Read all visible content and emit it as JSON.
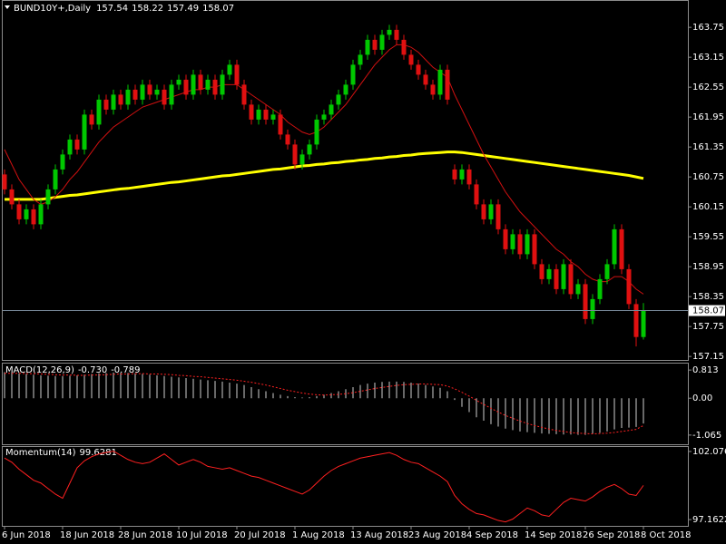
{
  "chart_data": [
    {
      "type": "candlestick",
      "symbol": "BUND10Y+,Daily",
      "categories": [
        "6 Jun 2018",
        null,
        null,
        null,
        null,
        null,
        null,
        null,
        "18 Jun 2018",
        null,
        null,
        null,
        null,
        null,
        null,
        null,
        "28 Jun 2018",
        null,
        null,
        null,
        null,
        null,
        null,
        null,
        "10 Jul 2018",
        null,
        null,
        null,
        null,
        null,
        null,
        null,
        "20 Jul 2018",
        null,
        null,
        null,
        null,
        null,
        null,
        null,
        "1 Aug 2018",
        null,
        null,
        null,
        null,
        null,
        null,
        null,
        "13 Aug 2018",
        null,
        null,
        null,
        null,
        null,
        null,
        null,
        "23 Aug 2018",
        null,
        null,
        null,
        null,
        null,
        null,
        null,
        "4 Sep 2018",
        null,
        null,
        null,
        null,
        null,
        null,
        null,
        "14 Sep 2018",
        null,
        null,
        null,
        null,
        null,
        null,
        null,
        "26 Sep 2018",
        null,
        null,
        null,
        null,
        null,
        null,
        null,
        "8 Oct 2018"
      ],
      "open": [
        160.8,
        160.5,
        160.2,
        159.9,
        160.1,
        159.8,
        160.2,
        160.5,
        160.9,
        161.2,
        161.5,
        161.3,
        162.0,
        161.8,
        162.3,
        162.1,
        162.4,
        162.2,
        162.5,
        162.3,
        162.6,
        162.4,
        162.5,
        162.2,
        162.6,
        162.7,
        162.4,
        162.8,
        162.5,
        162.7,
        162.4,
        162.8,
        163.0,
        162.6,
        162.2,
        161.9,
        162.1,
        161.9,
        162.0,
        161.6,
        161.4,
        161.0,
        161.2,
        161.4,
        161.9,
        162.0,
        162.2,
        162.4,
        162.6,
        163.0,
        163.2,
        163.5,
        163.3,
        163.6,
        163.7,
        163.5,
        163.2,
        163.0,
        162.8,
        162.6,
        162.4,
        162.9,
        160.9,
        160.7,
        160.9,
        160.6,
        160.2,
        159.9,
        160.2,
        159.7,
        159.3,
        159.6,
        159.2,
        159.6,
        159.0,
        158.7,
        158.9,
        158.5,
        159.0,
        158.4,
        158.6,
        157.9,
        158.3,
        158.7,
        159.0,
        159.7,
        158.9,
        158.2,
        157.54
      ],
      "high": [
        160.9,
        160.6,
        160.3,
        160.2,
        160.2,
        160.3,
        160.6,
        161.0,
        161.3,
        161.6,
        161.6,
        162.1,
        162.1,
        162.4,
        162.4,
        162.5,
        162.5,
        162.6,
        162.6,
        162.7,
        162.7,
        162.6,
        162.6,
        162.7,
        162.8,
        162.8,
        162.9,
        162.9,
        162.8,
        162.8,
        162.9,
        163.1,
        163.1,
        162.7,
        162.3,
        162.2,
        162.2,
        162.1,
        162.1,
        161.7,
        161.5,
        161.3,
        161.5,
        162.0,
        162.1,
        162.3,
        162.5,
        162.7,
        163.1,
        163.3,
        163.6,
        163.6,
        163.7,
        163.8,
        163.8,
        163.6,
        163.3,
        163.1,
        162.9,
        162.7,
        163.0,
        163.0,
        161.0,
        161.0,
        161.0,
        160.7,
        160.3,
        160.3,
        160.3,
        159.8,
        159.7,
        159.7,
        159.7,
        159.7,
        159.1,
        159.0,
        159.0,
        159.1,
        159.1,
        158.7,
        158.7,
        158.4,
        158.8,
        159.1,
        159.8,
        159.8,
        159.0,
        158.3,
        158.22
      ],
      "low": [
        160.4,
        160.1,
        159.8,
        159.8,
        159.7,
        159.7,
        160.1,
        160.4,
        160.8,
        161.1,
        161.2,
        161.2,
        161.7,
        161.7,
        162.0,
        162.0,
        162.1,
        162.1,
        162.2,
        162.2,
        162.3,
        162.3,
        162.1,
        162.1,
        162.5,
        162.3,
        162.3,
        162.4,
        162.4,
        162.3,
        162.3,
        162.7,
        162.5,
        162.1,
        161.8,
        161.8,
        161.8,
        161.8,
        161.5,
        161.3,
        160.9,
        160.9,
        161.1,
        161.3,
        161.8,
        161.9,
        162.1,
        162.3,
        162.5,
        162.9,
        163.1,
        163.2,
        163.2,
        163.5,
        163.4,
        163.1,
        162.9,
        162.7,
        162.5,
        162.3,
        162.3,
        162.2,
        160.6,
        160.6,
        160.5,
        160.1,
        159.8,
        159.8,
        159.6,
        159.2,
        159.2,
        159.1,
        159.1,
        158.9,
        158.6,
        158.6,
        158.4,
        158.4,
        158.3,
        158.3,
        157.8,
        157.8,
        158.2,
        158.6,
        158.9,
        158.8,
        158.1,
        157.35,
        157.49
      ],
      "close": [
        160.5,
        160.2,
        159.9,
        160.1,
        159.8,
        160.2,
        160.5,
        160.9,
        161.2,
        161.5,
        161.3,
        162.0,
        161.8,
        162.3,
        162.1,
        162.4,
        162.2,
        162.5,
        162.3,
        162.6,
        162.4,
        162.5,
        162.2,
        162.6,
        162.7,
        162.4,
        162.8,
        162.5,
        162.7,
        162.4,
        162.8,
        163.0,
        162.6,
        162.2,
        161.9,
        162.1,
        161.9,
        162.0,
        161.6,
        161.4,
        161.0,
        161.2,
        161.4,
        161.9,
        162.0,
        162.2,
        162.4,
        162.6,
        163.0,
        163.2,
        163.5,
        163.3,
        163.6,
        163.7,
        163.5,
        163.2,
        163.0,
        162.8,
        162.6,
        162.4,
        162.9,
        162.3,
        160.7,
        160.9,
        160.6,
        160.2,
        159.9,
        160.2,
        159.7,
        159.3,
        159.6,
        159.2,
        159.6,
        159.0,
        158.7,
        158.9,
        158.5,
        159.0,
        158.4,
        158.6,
        157.9,
        158.3,
        158.7,
        159.0,
        159.7,
        158.9,
        158.2,
        157.54,
        158.07
      ],
      "up_color": "#00c800",
      "down_color": "#e01010",
      "ylim": [
        157.08,
        164.28
      ],
      "yticks": [
        163.75,
        163.15,
        162.55,
        161.95,
        161.35,
        160.75,
        160.15,
        159.55,
        158.95,
        158.35,
        157.75,
        157.15
      ],
      "lines": [
        {
          "color": "#ffff00",
          "width": 3,
          "values": [
            160.3,
            160.3,
            160.3,
            160.3,
            160.3,
            160.3,
            160.32,
            160.34,
            160.36,
            160.38,
            160.39,
            160.41,
            160.43,
            160.45,
            160.47,
            160.49,
            160.51,
            160.52,
            160.54,
            160.56,
            160.58,
            160.6,
            160.62,
            160.64,
            160.65,
            160.67,
            160.69,
            160.71,
            160.73,
            160.75,
            160.77,
            160.78,
            160.8,
            160.82,
            160.84,
            160.86,
            160.88,
            160.9,
            160.91,
            160.93,
            160.95,
            160.97,
            160.98,
            161.0,
            161.01,
            161.03,
            161.04,
            161.06,
            161.07,
            161.09,
            161.1,
            161.12,
            161.13,
            161.15,
            161.16,
            161.18,
            161.19,
            161.21,
            161.22,
            161.23,
            161.24,
            161.25,
            161.25,
            161.24,
            161.22,
            161.2,
            161.18,
            161.16,
            161.14,
            161.12,
            161.1,
            161.08,
            161.06,
            161.04,
            161.02,
            161.0,
            160.98,
            160.96,
            160.94,
            160.92,
            160.9,
            160.88,
            160.86,
            160.84,
            160.82,
            160.8,
            160.78,
            160.75,
            160.72
          ]
        },
        {
          "color": "#d01010",
          "width": 1,
          "values": [
            161.3,
            161.0,
            160.7,
            160.5,
            160.3,
            160.2,
            160.25,
            160.35,
            160.5,
            160.7,
            160.85,
            161.05,
            161.25,
            161.45,
            161.6,
            161.75,
            161.85,
            161.95,
            162.05,
            162.15,
            162.2,
            162.25,
            162.3,
            162.35,
            162.4,
            162.45,
            162.5,
            162.5,
            162.55,
            162.55,
            162.6,
            162.6,
            162.6,
            162.5,
            162.4,
            162.3,
            162.2,
            162.1,
            162.0,
            161.85,
            161.75,
            161.65,
            161.6,
            161.65,
            161.75,
            161.9,
            162.05,
            162.2,
            162.4,
            162.6,
            162.8,
            163.0,
            163.15,
            163.3,
            163.4,
            163.4,
            163.35,
            163.25,
            163.1,
            162.95,
            162.85,
            162.75,
            162.4,
            162.1,
            161.8,
            161.5,
            161.2,
            160.95,
            160.7,
            160.45,
            160.25,
            160.05,
            159.9,
            159.75,
            159.6,
            159.45,
            159.3,
            159.2,
            159.05,
            158.95,
            158.8,
            158.7,
            158.65,
            158.65,
            158.75,
            158.75,
            158.65,
            158.5,
            158.4
          ]
        }
      ]
    },
    {
      "type": "macd",
      "name": "MACD(12,26,9)",
      "last_labels": [
        "-0.730",
        "-0.789"
      ],
      "histogram": [
        0.75,
        0.74,
        0.72,
        0.7,
        0.68,
        0.66,
        0.65,
        0.64,
        0.64,
        0.65,
        0.66,
        0.68,
        0.7,
        0.72,
        0.73,
        0.74,
        0.74,
        0.73,
        0.72,
        0.7,
        0.68,
        0.66,
        0.64,
        0.62,
        0.6,
        0.58,
        0.56,
        0.54,
        0.52,
        0.5,
        0.48,
        0.45,
        0.42,
        0.38,
        0.32,
        0.26,
        0.2,
        0.15,
        0.1,
        0.06,
        0.03,
        0.02,
        0.03,
        0.06,
        0.1,
        0.15,
        0.2,
        0.26,
        0.32,
        0.38,
        0.42,
        0.45,
        0.47,
        0.48,
        0.48,
        0.47,
        0.45,
        0.42,
        0.38,
        0.34,
        0.3,
        0.2,
        -0.05,
        -0.25,
        -0.4,
        -0.55,
        -0.65,
        -0.75,
        -0.82,
        -0.88,
        -0.92,
        -0.96,
        -0.98,
        -1.0,
        -1.02,
        -1.03,
        -1.04,
        -1.05,
        -1.05,
        -1.06,
        -1.06,
        -1.04,
        -1.0,
        -0.96,
        -0.9,
        -0.86,
        -0.85,
        -0.83,
        -0.73
      ],
      "signal": [
        0.72,
        0.72,
        0.72,
        0.71,
        0.71,
        0.7,
        0.69,
        0.68,
        0.67,
        0.67,
        0.66,
        0.66,
        0.67,
        0.67,
        0.68,
        0.69,
        0.7,
        0.7,
        0.71,
        0.71,
        0.7,
        0.7,
        0.69,
        0.68,
        0.66,
        0.65,
        0.63,
        0.62,
        0.6,
        0.58,
        0.56,
        0.54,
        0.52,
        0.49,
        0.46,
        0.42,
        0.38,
        0.33,
        0.28,
        0.23,
        0.19,
        0.15,
        0.12,
        0.1,
        0.09,
        0.1,
        0.11,
        0.13,
        0.16,
        0.2,
        0.24,
        0.28,
        0.31,
        0.34,
        0.37,
        0.39,
        0.4,
        0.41,
        0.41,
        0.4,
        0.39,
        0.35,
        0.27,
        0.17,
        0.06,
        -0.06,
        -0.18,
        -0.29,
        -0.4,
        -0.5,
        -0.58,
        -0.66,
        -0.73,
        -0.79,
        -0.84,
        -0.89,
        -0.93,
        -0.96,
        -0.99,
        -1.01,
        -1.02,
        -1.03,
        -1.02,
        -1.01,
        -0.99,
        -0.96,
        -0.93,
        -0.9,
        -0.789
      ],
      "hist_color": "#d0d0d0",
      "signal_color": "#ff2020",
      "ylim": [
        -1.33,
        1.0
      ],
      "yticks": [
        0.813,
        {
          "value": 0,
          "label": "0.00"
        },
        -1.065
      ]
    },
    {
      "type": "line",
      "name": "Momentum(14)",
      "values": [
        101.6,
        101.3,
        100.8,
        100.4,
        100.0,
        99.8,
        99.4,
        99.0,
        98.7,
        99.8,
        100.9,
        101.4,
        101.7,
        101.9,
        102.0,
        102.1,
        101.8,
        101.5,
        101.3,
        101.2,
        101.3,
        101.6,
        101.9,
        101.5,
        101.1,
        101.3,
        101.5,
        101.3,
        101.0,
        100.9,
        100.8,
        100.9,
        100.7,
        100.5,
        100.3,
        100.2,
        100.0,
        99.8,
        99.6,
        99.4,
        99.2,
        99.0,
        99.3,
        99.8,
        100.3,
        100.7,
        101.0,
        101.2,
        101.4,
        101.6,
        101.7,
        101.8,
        101.9,
        102.0,
        101.8,
        101.5,
        101.3,
        101.2,
        100.9,
        100.6,
        100.3,
        99.9,
        98.9,
        98.3,
        97.9,
        97.6,
        97.5,
        97.3,
        97.1,
        97.0,
        97.2,
        97.6,
        98.0,
        97.8,
        97.5,
        97.4,
        97.9,
        98.4,
        98.7,
        98.6,
        98.5,
        98.8,
        99.2,
        99.5,
        99.7,
        99.4,
        99.0,
        98.9,
        99.6281
      ],
      "color": "#ff2020",
      "ylim": [
        96.71,
        102.4
      ],
      "yticks": [
        102.0761,
        97.1622
      ]
    }
  ]
}
